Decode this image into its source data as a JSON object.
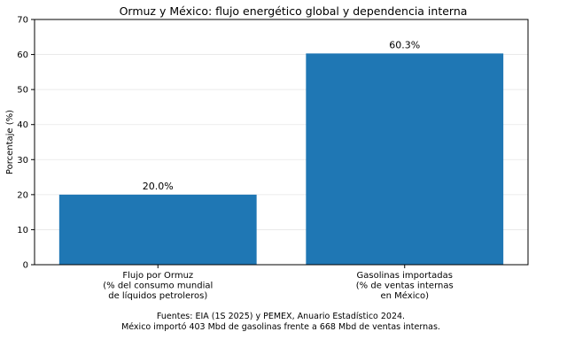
{
  "chart_data": {
    "type": "bar",
    "title": "Ormuz y México: flujo energético global y dependencia interna",
    "xlabel": "",
    "ylabel": "Porcentaje (%)",
    "ylim": [
      0,
      70
    ],
    "yticks": [
      0,
      10,
      20,
      30,
      40,
      50,
      60,
      70
    ],
    "grid": "horizontal",
    "bar_color": "#1f77b4",
    "categories": [
      [
        "Flujo por Ormuz",
        "(% del consumo mundial",
        "de líquidos petroleros)"
      ],
      [
        "Gasolinas importadas",
        "(% de ventas internas",
        "en México)"
      ]
    ],
    "values": [
      20.0,
      60.3
    ],
    "value_labels": [
      "20.0%",
      "60.3%"
    ]
  },
  "footnote": {
    "line1": "Fuentes: EIA (1S 2025) y PEMEX, Anuario Estadístico 2024.",
    "line2": "México importó 403 Mbd de gasolinas frente a 668 Mbd de ventas internas."
  }
}
